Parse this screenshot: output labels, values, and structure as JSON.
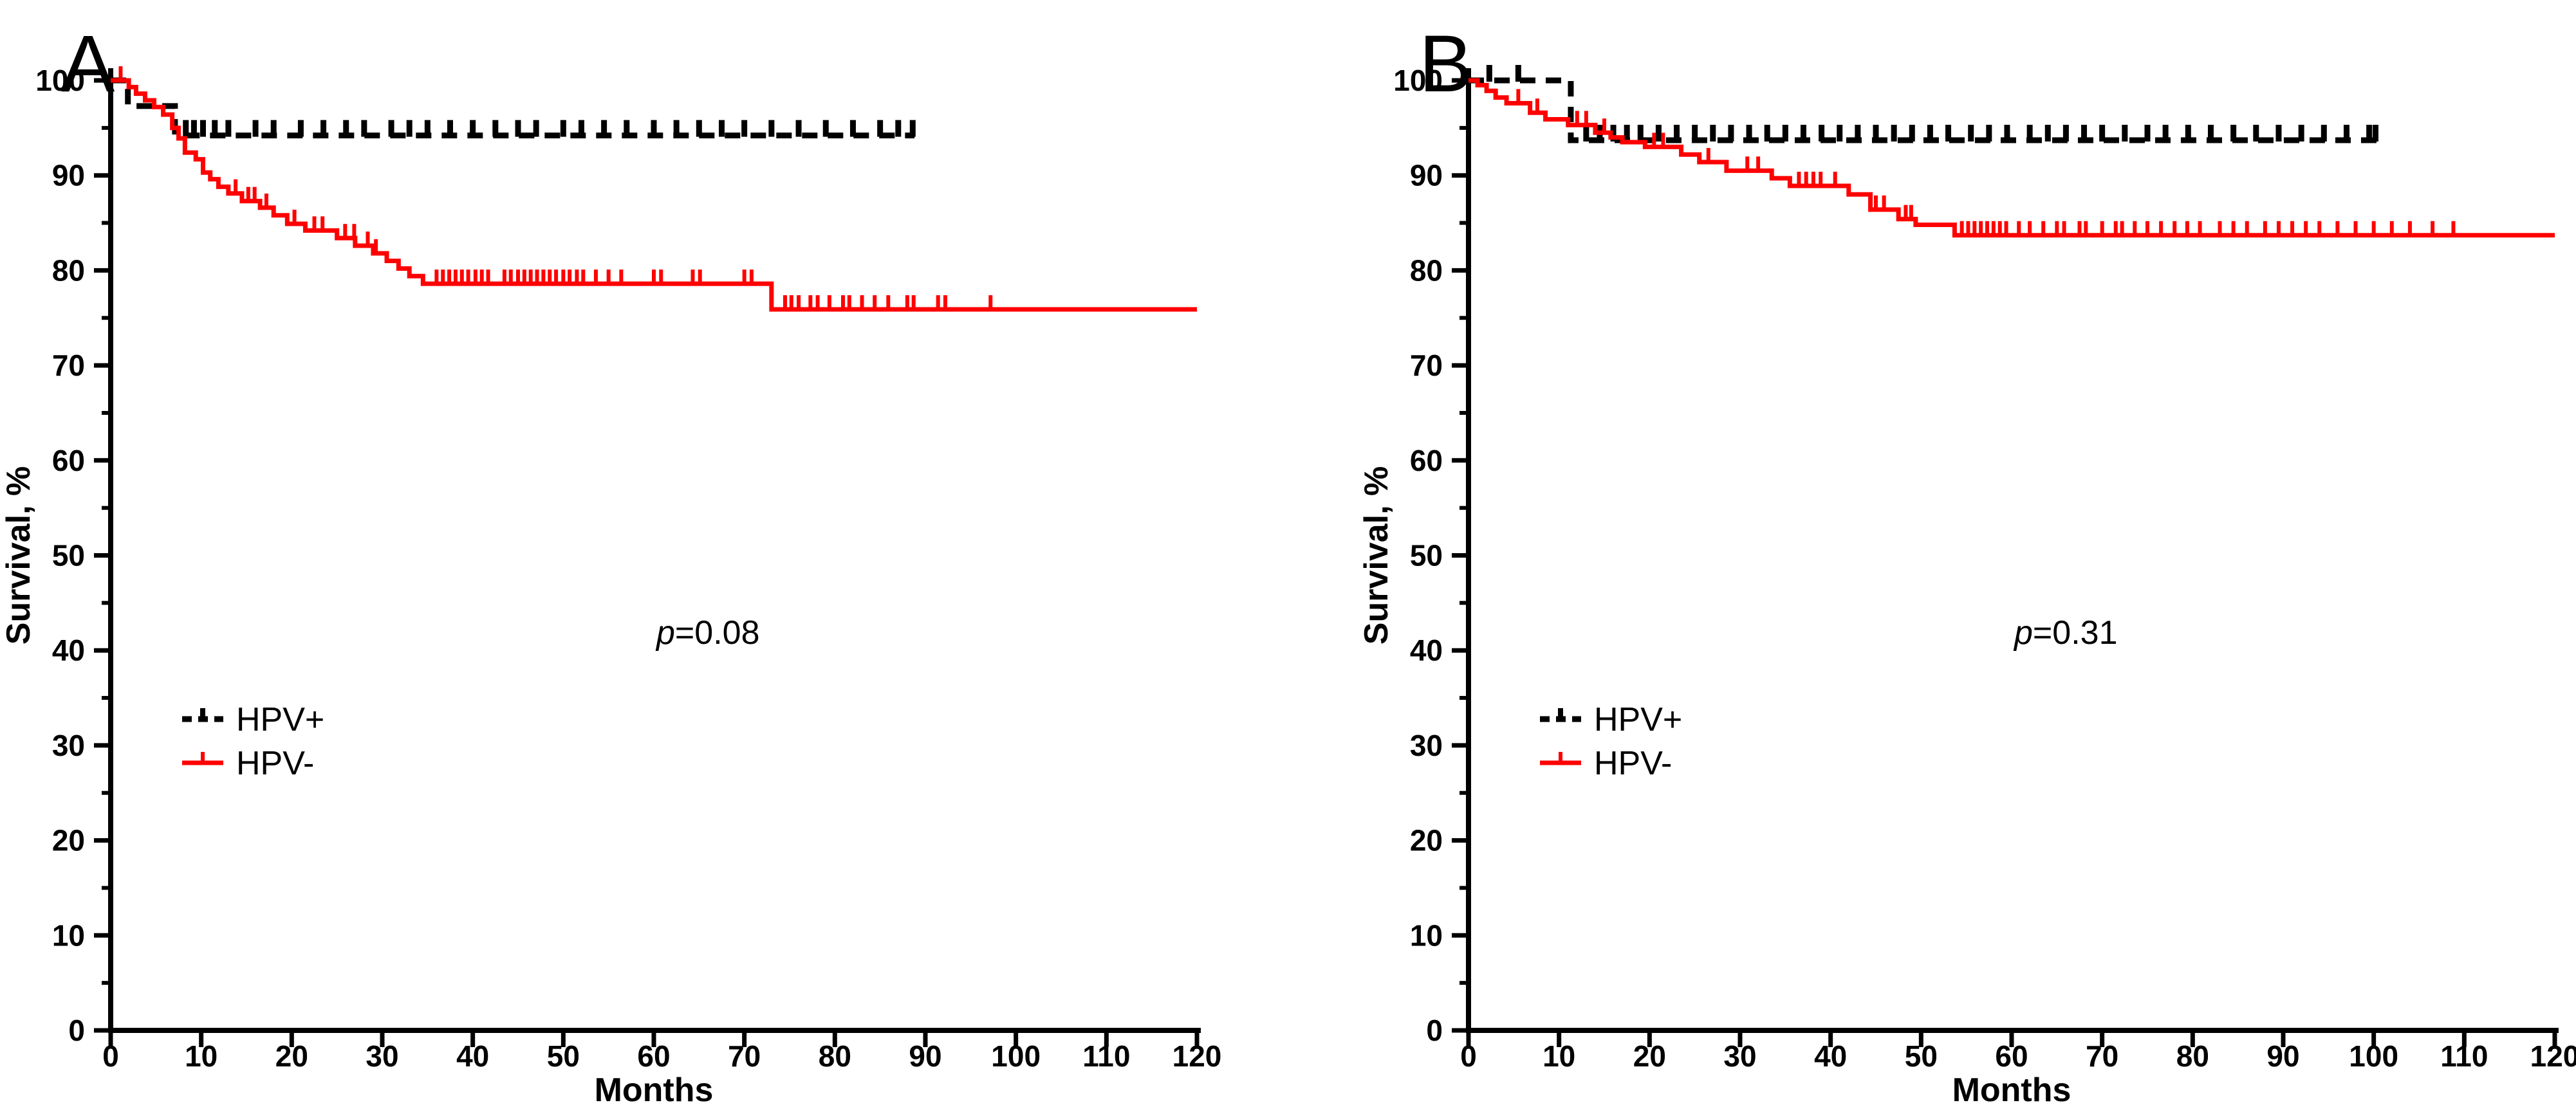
{
  "figure": {
    "background": "#FFFFFF",
    "accent_red": "#FF0000",
    "accent_black": "#000000"
  },
  "chart_data": [
    {
      "type": "line",
      "subtype": "kaplan_meier_survival",
      "panel_label": "A",
      "xlabel": "Months",
      "ylabel": "Survival, %",
      "xlim": [
        0,
        120
      ],
      "ylim": [
        0,
        100
      ],
      "xticks": [
        0,
        10,
        20,
        30,
        40,
        50,
        60,
        70,
        80,
        90,
        100,
        110,
        120
      ],
      "yticks": [
        0,
        10,
        20,
        30,
        40,
        50,
        60,
        70,
        80,
        90,
        100
      ],
      "y_minor_ticks": [
        5,
        15,
        25,
        35,
        45,
        55,
        65,
        75,
        85,
        95
      ],
      "grid": false,
      "legend_position": "left-middle",
      "p_annotation": {
        "italic": "p",
        "rest": "=0.08"
      },
      "legend": [
        {
          "label": "HPV+",
          "color": "#000000",
          "dashed": true
        },
        {
          "label": "HPV-",
          "color": "#FF0000",
          "dashed": false
        }
      ],
      "series": [
        {
          "name": "HPV+",
          "color": "#000000",
          "dashed": true,
          "steps": [
            [
              0,
              100
            ],
            [
              1.9,
              97.3
            ],
            [
              7.1,
              94.2
            ]
          ],
          "end_month": 88.8,
          "censor_months": [
            8.3,
            9.2,
            10.2,
            11.5,
            13,
            16,
            18,
            21,
            23.5,
            26,
            28,
            31,
            33,
            35,
            37.5,
            40,
            42.5,
            45,
            47,
            50,
            52,
            54.5,
            57,
            60,
            62.5,
            65,
            67.5,
            70,
            73,
            76,
            79,
            82,
            85,
            87,
            88.6
          ]
        },
        {
          "name": "HPV-",
          "color": "#FF0000",
          "dashed": false,
          "steps": [
            [
              0,
              100
            ],
            [
              2,
              99.3
            ],
            [
              2.8,
              98.6
            ],
            [
              3.8,
              97.9
            ],
            [
              4.8,
              97.2
            ],
            [
              5.8,
              96.4
            ],
            [
              6.8,
              95.0
            ],
            [
              7.5,
              93.9
            ],
            [
              8.2,
              92.4
            ],
            [
              9.4,
              91.7
            ],
            [
              10.2,
              90.3
            ],
            [
              11,
              89.6
            ],
            [
              11.9,
              88.8
            ],
            [
              13,
              88.1
            ],
            [
              14.5,
              87.3
            ],
            [
              16.5,
              86.6
            ],
            [
              18,
              85.8
            ],
            [
              19.5,
              84.9
            ],
            [
              21.5,
              84.2
            ],
            [
              25,
              83.4
            ],
            [
              27,
              82.6
            ],
            [
              29,
              81.8
            ],
            [
              30.5,
              81.0
            ],
            [
              31.8,
              80.2
            ],
            [
              33,
              79.4
            ],
            [
              34.5,
              78.6
            ],
            [
              73,
              75.9
            ]
          ],
          "end_month": 120,
          "censor_months": [
            1.1,
            13.8,
            15.2,
            15.9,
            17.2,
            20.3,
            22.5,
            23.4,
            25.9,
            26.9,
            28.4,
            29.3,
            36,
            36.7,
            37.4,
            38.1,
            38.8,
            39.5,
            40.3,
            41,
            41.7,
            43.5,
            44.2,
            45,
            45.7,
            46.4,
            47.1,
            47.8,
            48.5,
            49.2,
            50,
            50.7,
            51.5,
            52.2,
            53.6,
            55,
            56.4,
            60,
            60.8,
            64.3,
            65.1,
            70,
            70.8,
            74.5,
            75.2,
            76,
            77.3,
            78.1,
            79.4,
            80.9,
            81.6,
            83,
            84.4,
            85.9,
            88,
            88.7,
            91.4,
            92.2,
            97.2
          ]
        }
      ]
    },
    {
      "type": "line",
      "subtype": "kaplan_meier_survival",
      "panel_label": "B",
      "xlabel": "Months",
      "ylabel": "Survival, %",
      "xlim": [
        0,
        120
      ],
      "ylim": [
        0,
        100
      ],
      "xticks": [
        0,
        10,
        20,
        30,
        40,
        50,
        60,
        70,
        80,
        90,
        100,
        110,
        120
      ],
      "yticks": [
        0,
        10,
        20,
        30,
        40,
        50,
        60,
        70,
        80,
        90,
        100
      ],
      "y_minor_ticks": [
        5,
        15,
        25,
        35,
        45,
        55,
        65,
        75,
        85,
        95
      ],
      "grid": false,
      "legend_position": "left-middle",
      "p_annotation": {
        "italic": "p",
        "rest": "=0.31"
      },
      "legend": [
        {
          "label": "HPV+",
          "color": "#000000",
          "dashed": true
        },
        {
          "label": "HPV-",
          "color": "#FF0000",
          "dashed": false
        }
      ],
      "series": [
        {
          "name": "HPV+",
          "color": "#000000",
          "dashed": true,
          "steps": [
            [
              0,
              100
            ],
            [
              11.3,
              93.7
            ]
          ],
          "end_month": 100.5,
          "censor_months": [
            2.3,
            5.5,
            13,
            14.5,
            16,
            17.5,
            19,
            21,
            23,
            25,
            27,
            29,
            31,
            33,
            35,
            37,
            39,
            41,
            43,
            45,
            47,
            49,
            51,
            53,
            55.5,
            57.5,
            59.5,
            62,
            64,
            66,
            68,
            70,
            72.5,
            75,
            77,
            79.5,
            82,
            84.5,
            87,
            89.5,
            92,
            94.5,
            97,
            99.5,
            100.2
          ]
        },
        {
          "name": "HPV-",
          "color": "#FF0000",
          "dashed": false,
          "steps": [
            [
              0,
              100
            ],
            [
              1,
              99.5
            ],
            [
              2,
              98.9
            ],
            [
              3,
              98.2
            ],
            [
              4.2,
              97.6
            ],
            [
              6.8,
              96.6
            ],
            [
              8.5,
              95.9
            ],
            [
              11,
              95.3
            ],
            [
              14,
              94.5
            ],
            [
              15.7,
              94.0
            ],
            [
              17,
              93.5
            ],
            [
              19.5,
              93.0
            ],
            [
              23.5,
              92.2
            ],
            [
              25.5,
              91.4
            ],
            [
              28.5,
              90.5
            ],
            [
              33.5,
              89.7
            ],
            [
              35.5,
              88.9
            ],
            [
              42,
              88.0
            ],
            [
              44.4,
              86.4
            ],
            [
              47.5,
              85.4
            ],
            [
              49.4,
              84.8
            ],
            [
              53.7,
              83.7
            ]
          ],
          "end_month": 120,
          "censor_months": [
            5.5,
            7.6,
            12,
            13,
            15,
            20.5,
            21.5,
            26.5,
            30.8,
            32,
            36.5,
            37.3,
            38.1,
            38.9,
            40.5,
            45,
            45.9,
            48.3,
            48.9,
            54.5,
            55.2,
            55.9,
            56.6,
            57.3,
            58,
            58.7,
            59.4,
            60.8,
            62,
            63.5,
            65,
            65.8,
            67.5,
            68.2,
            70,
            71.5,
            72.2,
            73.6,
            75,
            76.5,
            78,
            79.4,
            80.8,
            83,
            84.5,
            86,
            88,
            89.5,
            91,
            92.5,
            94,
            96,
            98,
            100,
            102,
            104,
            106.5,
            108.8
          ]
        }
      ]
    }
  ]
}
